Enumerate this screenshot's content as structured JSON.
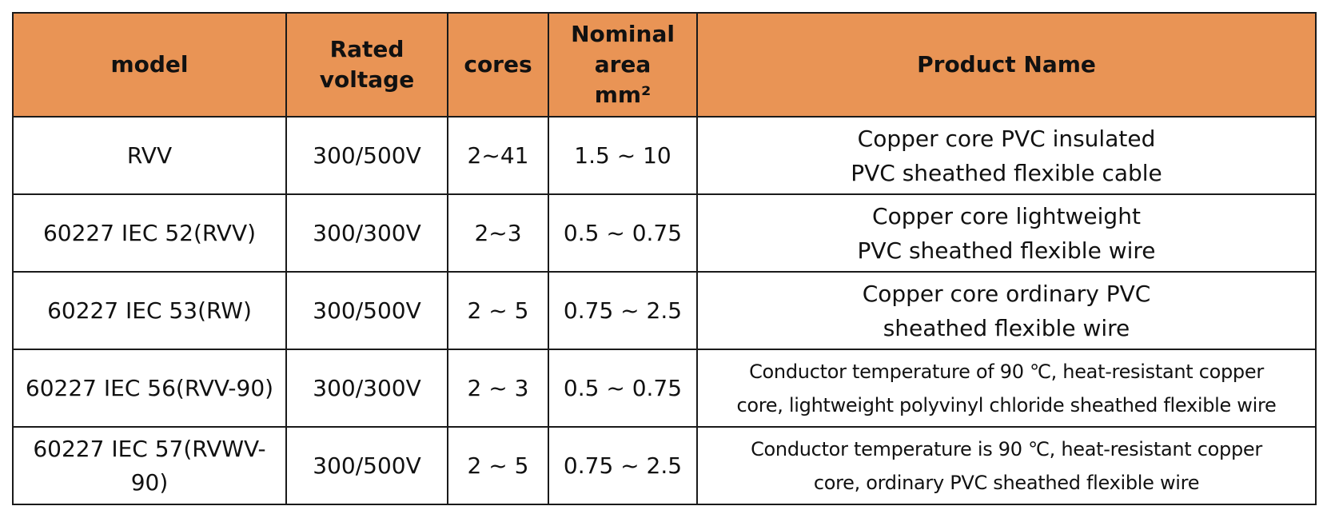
{
  "table": {
    "headers": {
      "model": "model",
      "voltage": [
        "Rated",
        "voltage"
      ],
      "cores": "cores",
      "area": [
        "Nominal",
        "area",
        "mm²"
      ],
      "product": "Product Name"
    },
    "rows": [
      {
        "model": "RVV",
        "voltage": "300/500V",
        "cores": "2~41",
        "area": "1.5 ~ 10",
        "product": [
          "Copper core PVC insulated",
          "PVC sheathed flexible cable"
        ]
      },
      {
        "model": "60227 IEC 52(RVV)",
        "voltage": "300/300V",
        "cores": "2~3",
        "area": "0.5 ~ 0.75",
        "product": [
          "Copper core lightweight",
          "PVC sheathed flexible wire"
        ]
      },
      {
        "model": "60227 IEC 53(RW)",
        "voltage": "300/500V",
        "cores": "2 ~ 5",
        "area": "0.75 ~ 2.5",
        "product": [
          "Copper core ordinary PVC",
          "sheathed flexible wire"
        ]
      },
      {
        "model": "60227 IEC 56(RVV-90)",
        "voltage": "300/300V",
        "cores": "2 ~ 3",
        "area": "0.5 ~ 0.75",
        "product": [
          "Conductor temperature of 90 ℃, heat-resistant copper",
          "core, lightweight polyvinyl chloride sheathed flexible wire"
        ]
      },
      {
        "model": "60227 IEC 57(RVWV-90)",
        "voltage": "300/500V",
        "cores": "2 ~ 5",
        "area": "0.75 ~ 2.5",
        "product": [
          "Conductor temperature is 90 ℃, heat-resistant copper",
          "core, ordinary PVC sheathed flexible wire"
        ]
      }
    ]
  },
  "colors": {
    "header_bg": "#e99455",
    "border": "#1a1a1a",
    "text": "#111111"
  }
}
